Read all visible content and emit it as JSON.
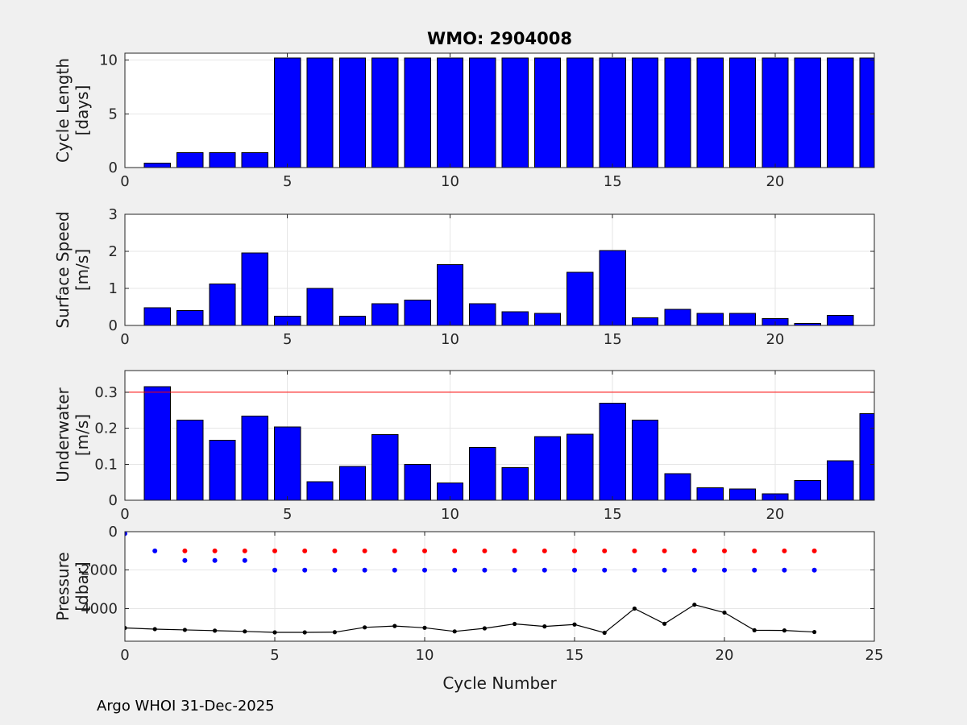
{
  "title": "WMO: 2904008",
  "xlabel": "Cycle Number",
  "footer": "Argo WHOI 31-Dec-2025",
  "colors": {
    "background": "#f0f0f0",
    "plot_background": "#ffffff",
    "bar_fill": "#0000ff",
    "bar_edge": "#000000",
    "threshold_line": "#ff0000",
    "red_marker": "#ff0000",
    "blue_marker": "#0000ff",
    "black_line": "#000000",
    "axis": "#262626",
    "grid": "#e6e6e6"
  },
  "chart_data": [
    {
      "id": "cycle-length",
      "type": "bar",
      "ylabel_lines": [
        "Cycle Length",
        "[days]"
      ],
      "xlim": [
        0,
        23.05
      ],
      "ylim": [
        0,
        10.65
      ],
      "xticks": [
        0,
        5,
        10,
        15,
        20
      ],
      "yticks": [
        0,
        5,
        10
      ],
      "grid": true,
      "bar_width": 0.8,
      "bar_color": "#0000ff",
      "x": [
        1,
        2,
        3,
        4,
        5,
        6,
        7,
        8,
        9,
        10,
        11,
        12,
        13,
        14,
        15,
        16,
        17,
        18,
        19,
        20,
        21,
        22,
        23
      ],
      "values": [
        0.4,
        1.4,
        1.4,
        1.4,
        10.2,
        10.2,
        10.2,
        10.2,
        10.2,
        10.2,
        10.2,
        10.2,
        10.2,
        10.2,
        10.2,
        10.2,
        10.2,
        10.2,
        10.2,
        10.2,
        10.2,
        10.2,
        10.2
      ]
    },
    {
      "id": "surface-speed",
      "type": "bar",
      "ylabel_lines": [
        "Surface Speed",
        "[m/s]"
      ],
      "xlim": [
        0,
        23.05
      ],
      "ylim": [
        0,
        3
      ],
      "xticks": [
        0,
        5,
        10,
        15,
        20
      ],
      "yticks": [
        0,
        1,
        2,
        3
      ],
      "grid": true,
      "bar_width": 0.8,
      "bar_color": "#0000ff",
      "x": [
        1,
        2,
        3,
        4,
        5,
        6,
        7,
        8,
        9,
        10,
        11,
        12,
        13,
        14,
        15,
        16,
        17,
        18,
        19,
        20,
        21,
        22,
        23
      ],
      "values": [
        0.48,
        0.4,
        1.12,
        1.96,
        0.25,
        1.0,
        0.25,
        0.59,
        0.68,
        1.64,
        0.59,
        0.37,
        0.33,
        1.43,
        2.02,
        0.21,
        0.44,
        0.33,
        0.33,
        0.19,
        0.05,
        0.27,
        0
      ]
    },
    {
      "id": "underwater-speed",
      "type": "bar",
      "ylabel_lines": [
        "Underwater",
        "[m/s]"
      ],
      "xlim": [
        0,
        23.05
      ],
      "ylim": [
        0,
        0.36
      ],
      "xticks": [
        0,
        5,
        10,
        15,
        20
      ],
      "yticks": [
        0,
        0.1,
        0.2,
        0.3
      ],
      "grid": true,
      "bar_width": 0.8,
      "bar_color": "#0000ff",
      "ref_line": {
        "y": 0.3,
        "color": "#ff0000"
      },
      "x": [
        1,
        2,
        3,
        4,
        5,
        6,
        7,
        8,
        9,
        10,
        11,
        12,
        13,
        14,
        15,
        16,
        17,
        18,
        19,
        20,
        21,
        22,
        23
      ],
      "values": [
        0.315,
        0.222,
        0.167,
        0.234,
        0.204,
        0.051,
        0.094,
        0.182,
        0.099,
        0.048,
        0.146,
        0.091,
        0.177,
        0.183,
        0.27,
        0.222,
        0.074,
        0.035,
        0.031,
        0.018,
        0.055,
        0.11,
        0.24
      ]
    },
    {
      "id": "pressure",
      "type": "scatter",
      "ylabel_lines": [
        "Pressure",
        "[dbar]"
      ],
      "xlim": [
        0,
        25
      ],
      "ylim": [
        0,
        5700
      ],
      "invert_y": true,
      "xticks": [
        0,
        5,
        10,
        15,
        20,
        25
      ],
      "yticks": [
        0,
        2000,
        4000
      ],
      "grid": true,
      "series": [
        {
          "name": "red-dots",
          "color": "#ff0000",
          "marker_r": 3,
          "line": false,
          "x": [
            2,
            3,
            4,
            5,
            6,
            7,
            8,
            9,
            10,
            11,
            12,
            13,
            14,
            15,
            16,
            17,
            18,
            19,
            20,
            21,
            22,
            23
          ],
          "y": [
            1000,
            1000,
            1000,
            1000,
            1000,
            1000,
            1000,
            1000,
            1000,
            1000,
            1000,
            1000,
            1000,
            1000,
            1000,
            1000,
            1000,
            1000,
            1000,
            1000,
            1000,
            1000
          ]
        },
        {
          "name": "blue-dots",
          "color": "#0000ff",
          "marker_r": 3,
          "line": false,
          "x": [
            0,
            1,
            2,
            3,
            4,
            5,
            6,
            7,
            8,
            9,
            10,
            11,
            12,
            13,
            14,
            15,
            16,
            17,
            18,
            19,
            20,
            21,
            22,
            23
          ],
          "y": [
            100,
            1000,
            1500,
            1500,
            1500,
            2000,
            2000,
            2000,
            2000,
            2000,
            2000,
            2000,
            2000,
            2000,
            2000,
            2000,
            2000,
            2000,
            2000,
            2000,
            2000,
            2000,
            2000,
            2000
          ]
        },
        {
          "name": "black-line-dots",
          "color": "#000000",
          "marker_r": 2.6,
          "line": true,
          "x": [
            0,
            1,
            2,
            3,
            4,
            5,
            6,
            7,
            8,
            9,
            10,
            11,
            12,
            13,
            14,
            15,
            16,
            17,
            18,
            19,
            20,
            21,
            22,
            23
          ],
          "y": [
            5010,
            5070,
            5110,
            5150,
            5190,
            5240,
            5240,
            5230,
            4980,
            4910,
            5000,
            5190,
            5030,
            4800,
            4930,
            4830,
            5260,
            4000,
            4790,
            3800,
            4210,
            5130,
            5140,
            5220
          ]
        }
      ]
    }
  ]
}
